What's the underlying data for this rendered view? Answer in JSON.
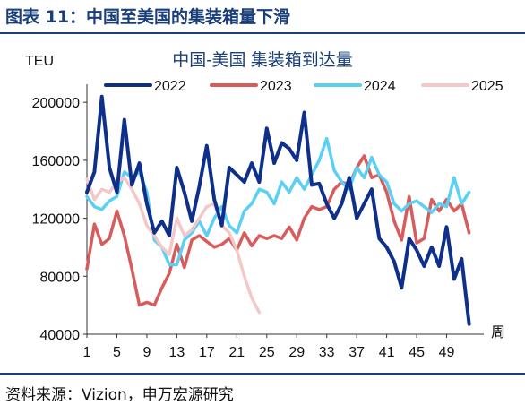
{
  "figure": {
    "title": "图表 11：中国至美国的集装箱量下滑",
    "source": "资料来源：Vizion，申万宏源研究"
  },
  "chart_data": {
    "type": "line",
    "title": "中国-美国 集装箱到达量",
    "ylabel": "TEU",
    "xlabel": "周",
    "ylim": [
      40000,
      210000
    ],
    "xlim": [
      1,
      53
    ],
    "yticks": [
      40000,
      80000,
      120000,
      160000,
      200000
    ],
    "ytick_labels": [
      "40000",
      "80000",
      "120000",
      "160000",
      "200000"
    ],
    "xticks": [
      1,
      5,
      9,
      13,
      17,
      21,
      25,
      29,
      33,
      37,
      41,
      45,
      49
    ],
    "xtick_labels": [
      "1",
      "5",
      "9",
      "13",
      "17",
      "21",
      "25",
      "29",
      "33",
      "37",
      "41",
      "45",
      "49"
    ],
    "grid": false,
    "legend_position": "top",
    "series": [
      {
        "name": "2022",
        "color": "#0e2f8a",
        "x_start": 1,
        "values": [
          138000,
          152000,
          204000,
          155000,
          138000,
          188000,
          143000,
          158000,
          130000,
          110000,
          118000,
          108000,
          155000,
          138000,
          118000,
          142000,
          170000,
          133000,
          115000,
          155000,
          150000,
          145000,
          158000,
          145000,
          182000,
          158000,
          172000,
          168000,
          160000,
          193000,
          143000,
          144000,
          130000,
          120000,
          130000,
          148000,
          120000,
          130000,
          140000,
          106000,
          100000,
          90000,
          72000,
          106000,
          98000,
          87000,
          100000,
          87000,
          114000,
          78000,
          92000,
          47000
        ]
      },
      {
        "name": "2023",
        "color": "#d95c5c",
        "x_start": 1,
        "values": [
          85000,
          116000,
          102000,
          106000,
          125000,
          108000,
          85000,
          60000,
          62000,
          60000,
          72000,
          82000,
          102000,
          86000,
          105000,
          108000,
          104000,
          100000,
          102000,
          106000,
          98000,
          110000,
          101000,
          108000,
          106000,
          108000,
          106000,
          114000,
          105000,
          120000,
          128000,
          126000,
          128000,
          140000,
          145000,
          143000,
          155000,
          163000,
          148000,
          150000,
          138000,
          118000,
          105000,
          135000,
          103000,
          106000,
          133000,
          125000,
          133000,
          125000,
          130000,
          110000
        ]
      },
      {
        "name": "2024",
        "color": "#5bd0f5",
        "x_start": 1,
        "values": [
          135000,
          128000,
          126000,
          132000,
          135000,
          152000,
          148000,
          152000,
          138000,
          105000,
          100000,
          88000,
          88000,
          105000,
          110000,
          118000,
          108000,
          120000,
          128000,
          115000,
          110000,
          125000,
          130000,
          140000,
          138000,
          130000,
          145000,
          138000,
          148000,
          140000,
          150000,
          160000,
          175000,
          153000,
          145000,
          140000,
          155000,
          148000,
          162000,
          150000,
          145000,
          130000,
          125000,
          130000,
          132000,
          128000,
          124000,
          130000,
          128000,
          148000,
          130000,
          138000
        ]
      },
      {
        "name": "2025",
        "color": "#f5c8c8",
        "x_start": 1,
        "values": [
          147000,
          133000,
          140000,
          138000,
          145000,
          148000,
          140000,
          130000,
          115000,
          108000,
          100000,
          95000,
          120000,
          108000,
          112000,
          120000,
          128000,
          130000,
          115000,
          110000,
          98000,
          80000,
          65000,
          55000
        ]
      }
    ]
  }
}
